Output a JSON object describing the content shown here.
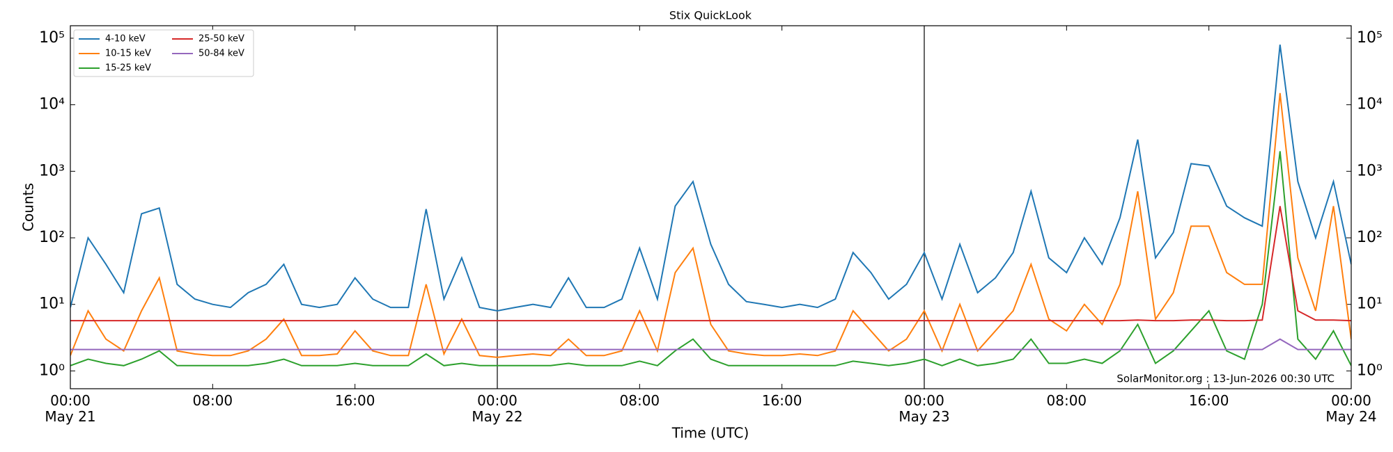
{
  "chart_data": {
    "type": "line",
    "title": "Stix QuickLook",
    "x_label": "Time (UTC)",
    "y_label": "Counts",
    "annotation": "SolarMonitor.org : 13-Jun-2026 00:30 UTC",
    "log_y": true,
    "legend": "upper left",
    "right_axis": true,
    "xlim": [
      0,
      72
    ],
    "ylim": [
      0.54,
      154000
    ],
    "xticks": [
      {
        "value": 0,
        "label": "00:00\nMay 21"
      },
      {
        "value": 8,
        "label": "08:00"
      },
      {
        "value": 16,
        "label": "16:00"
      },
      {
        "value": 24,
        "label": "00:00\nMay 22"
      },
      {
        "value": 32,
        "label": "08:00"
      },
      {
        "value": 40,
        "label": "16:00"
      },
      {
        "value": 48,
        "label": "00:00\nMay 23"
      },
      {
        "value": 56,
        "label": "08:00"
      },
      {
        "value": 64,
        "label": "16:00"
      },
      {
        "value": 72,
        "label": "00:00\nMay 24"
      }
    ],
    "yticks": [
      {
        "value": 1,
        "label": "10⁰"
      },
      {
        "value": 10,
        "label": "10¹"
      },
      {
        "value": 100,
        "label": "10²"
      },
      {
        "value": 1000,
        "label": "10³"
      },
      {
        "value": 10000,
        "label": "10⁴"
      },
      {
        "value": 100000,
        "label": "10⁵"
      }
    ],
    "vlines": [
      24,
      48
    ],
    "x": [
      0,
      1,
      2,
      3,
      4,
      5,
      6,
      7,
      8,
      9,
      10,
      11,
      12,
      13,
      14,
      15,
      16,
      17,
      18,
      19,
      20,
      21,
      22,
      23,
      24,
      25,
      26,
      27,
      28,
      29,
      30,
      31,
      32,
      33,
      34,
      35,
      36,
      37,
      38,
      39,
      40,
      41,
      42,
      43,
      44,
      45,
      46,
      47,
      48,
      49,
      50,
      51,
      52,
      53,
      54,
      55,
      56,
      57,
      58,
      59,
      60,
      61,
      62,
      63,
      64,
      65,
      66,
      67,
      68,
      69,
      70,
      71,
      72
    ],
    "series": [
      {
        "name": "4-10 keV",
        "color": "#1f77b4",
        "values": [
          9,
          100,
          40,
          15,
          230,
          280,
          20,
          12,
          10,
          9,
          15,
          20,
          40,
          10,
          9,
          10,
          25,
          12,
          9,
          9,
          270,
          12,
          50,
          9,
          8,
          9,
          10,
          9,
          25,
          9,
          9,
          12,
          70,
          12,
          300,
          700,
          80,
          20,
          11,
          10,
          9,
          10,
          9,
          12,
          60,
          30,
          12,
          20,
          60,
          12,
          80,
          15,
          25,
          60,
          500,
          50,
          30,
          100,
          40,
          200,
          3000,
          50,
          120,
          1300,
          1200,
          300,
          200,
          150,
          80000,
          700,
          100,
          700,
          40
        ]
      },
      {
        "name": "10-15 keV",
        "color": "#ff7f0e",
        "values": [
          1.7,
          8,
          3,
          2,
          8,
          25,
          2,
          1.8,
          1.7,
          1.7,
          2,
          3,
          6,
          1.7,
          1.7,
          1.8,
          4,
          2,
          1.7,
          1.7,
          20,
          1.8,
          6,
          1.7,
          1.6,
          1.7,
          1.8,
          1.7,
          3,
          1.7,
          1.7,
          2,
          8,
          2,
          30,
          70,
          5,
          2,
          1.8,
          1.7,
          1.7,
          1.8,
          1.7,
          2,
          8,
          4,
          2,
          3,
          8,
          2,
          10,
          2,
          4,
          8,
          40,
          6,
          4,
          10,
          5,
          20,
          500,
          6,
          15,
          150,
          150,
          30,
          20,
          20,
          15000,
          50,
          8,
          300,
          3
        ]
      },
      {
        "name": "15-25 keV",
        "color": "#2ca02c",
        "values": [
          1.2,
          1.5,
          1.3,
          1.2,
          1.5,
          2,
          1.2,
          1.2,
          1.2,
          1.2,
          1.2,
          1.3,
          1.5,
          1.2,
          1.2,
          1.2,
          1.3,
          1.2,
          1.2,
          1.2,
          1.8,
          1.2,
          1.3,
          1.2,
          1.2,
          1.2,
          1.2,
          1.2,
          1.3,
          1.2,
          1.2,
          1.2,
          1.4,
          1.2,
          2,
          3,
          1.5,
          1.2,
          1.2,
          1.2,
          1.2,
          1.2,
          1.2,
          1.2,
          1.4,
          1.3,
          1.2,
          1.3,
          1.5,
          1.2,
          1.5,
          1.2,
          1.3,
          1.5,
          3,
          1.3,
          1.3,
          1.5,
          1.3,
          2,
          5,
          1.3,
          2,
          4,
          8,
          2,
          1.5,
          10,
          2000,
          3,
          1.5,
          4,
          1.2
        ]
      },
      {
        "name": "25-50 keV",
        "color": "#d62728",
        "values": [
          5.7,
          5.7,
          5.7,
          5.7,
          5.7,
          5.7,
          5.7,
          5.7,
          5.7,
          5.7,
          5.7,
          5.7,
          5.7,
          5.7,
          5.7,
          5.7,
          5.7,
          5.7,
          5.7,
          5.7,
          5.7,
          5.7,
          5.7,
          5.7,
          5.7,
          5.7,
          5.7,
          5.7,
          5.7,
          5.7,
          5.7,
          5.7,
          5.7,
          5.7,
          5.7,
          5.7,
          5.7,
          5.7,
          5.7,
          5.7,
          5.7,
          5.7,
          5.7,
          5.7,
          5.7,
          5.7,
          5.7,
          5.7,
          5.7,
          5.7,
          5.7,
          5.7,
          5.7,
          5.7,
          5.7,
          5.7,
          5.7,
          5.7,
          5.7,
          5.7,
          5.8,
          5.7,
          5.7,
          5.8,
          5.8,
          5.7,
          5.7,
          5.8,
          300,
          8,
          5.8,
          5.8,
          5.7
        ]
      },
      {
        "name": "50-84 keV",
        "color": "#9467bd",
        "values": [
          2.1,
          2.1,
          2.1,
          2.1,
          2.1,
          2.1,
          2.1,
          2.1,
          2.1,
          2.1,
          2.1,
          2.1,
          2.1,
          2.1,
          2.1,
          2.1,
          2.1,
          2.1,
          2.1,
          2.1,
          2.1,
          2.1,
          2.1,
          2.1,
          2.1,
          2.1,
          2.1,
          2.1,
          2.1,
          2.1,
          2.1,
          2.1,
          2.1,
          2.1,
          2.1,
          2.1,
          2.1,
          2.1,
          2.1,
          2.1,
          2.1,
          2.1,
          2.1,
          2.1,
          2.1,
          2.1,
          2.1,
          2.1,
          2.1,
          2.1,
          2.1,
          2.1,
          2.1,
          2.1,
          2.1,
          2.1,
          2.1,
          2.1,
          2.1,
          2.1,
          2.1,
          2.1,
          2.1,
          2.1,
          2.1,
          2.1,
          2.1,
          2.1,
          3,
          2.1,
          2.1,
          2.1,
          2.1
        ]
      }
    ]
  }
}
